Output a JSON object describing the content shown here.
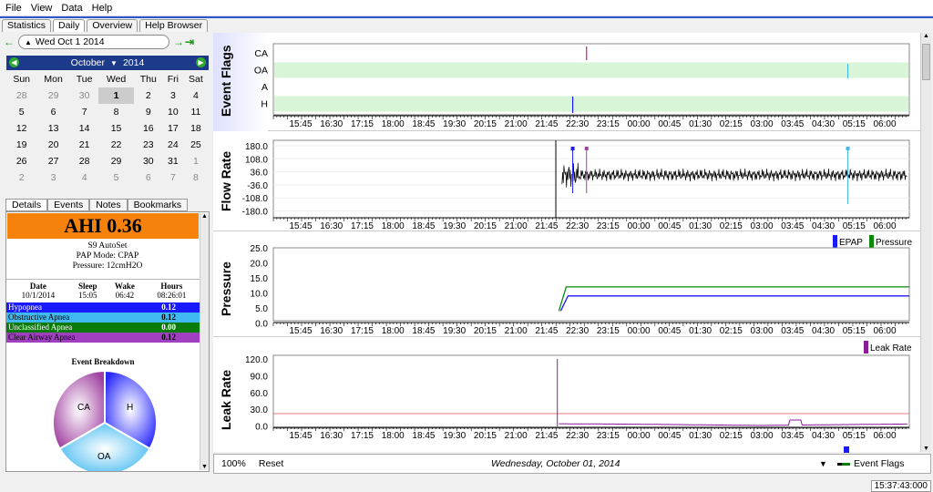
{
  "menu": [
    "File",
    "View",
    "Data",
    "Help"
  ],
  "tabs": [
    "Statistics",
    "Daily",
    "Overview",
    "Help Browser"
  ],
  "date_nav": {
    "date": "Wed Oct 1 2014"
  },
  "calendar": {
    "month": "October",
    "year": "2014",
    "weekdays": [
      "Sun",
      "Mon",
      "Tue",
      "Wed",
      "Thu",
      "Fri",
      "Sat"
    ],
    "weeks": [
      [
        "28",
        "29",
        "30",
        "1",
        "2",
        "3",
        "4"
      ],
      [
        "5",
        "6",
        "7",
        "8",
        "9",
        "10",
        "11"
      ],
      [
        "12",
        "13",
        "14",
        "15",
        "16",
        "17",
        "18"
      ],
      [
        "19",
        "20",
        "21",
        "22",
        "23",
        "24",
        "25"
      ],
      [
        "26",
        "27",
        "28",
        "29",
        "30",
        "31",
        "1"
      ],
      [
        "2",
        "3",
        "4",
        "5",
        "6",
        "7",
        "8"
      ]
    ]
  },
  "detail_tabs": [
    "Details",
    "Events",
    "Notes",
    "Bookmarks"
  ],
  "details": {
    "ahi": "AHI 0.36",
    "machine": "S9 AutoSet",
    "pap_mode": "PAP Mode: CPAP",
    "pressure": "Pressure: 12cmH2O",
    "headers": [
      "Date",
      "Sleep",
      "Wake",
      "Hours"
    ],
    "row": [
      "10/1/2014",
      "15:05",
      "06:42",
      "08:26:01"
    ],
    "events": [
      {
        "name": "Hypopnea",
        "value": "0.12",
        "color": "#1a1aff",
        "text": "#fff"
      },
      {
        "name": "Obstructive Apnea",
        "value": "0.12",
        "color": "#40b8f0",
        "text": "#000"
      },
      {
        "name": "Unclassified Apnea",
        "value": "0.00",
        "color": "#0a7a0a",
        "text": "#fff"
      },
      {
        "name": "Clear Airway Apnea",
        "value": "0.12",
        "color": "#a040c0",
        "text": "#000"
      }
    ],
    "breakdown_title": "Event Breakdown",
    "pie_labels": [
      "CA",
      "H",
      "OA"
    ]
  },
  "graphs": {
    "time_ticks": [
      "15:45",
      "16:30",
      "17:15",
      "18:00",
      "18:45",
      "19:30",
      "20:15",
      "21:00",
      "21:45",
      "22:30",
      "23:15",
      "00:00",
      "00:45",
      "01:30",
      "02:15",
      "03:00",
      "03:45",
      "04:30",
      "05:15",
      "06:00"
    ],
    "event_flags": {
      "title": "Event Flags",
      "rows": [
        "CA",
        "OA",
        "A",
        "H"
      ]
    },
    "flow_rate": {
      "title": "Flow Rate",
      "yticks": [
        "180.0",
        "108.0",
        "36.0",
        "-36.0",
        "-108.0",
        "-180.0"
      ]
    },
    "pressure": {
      "title": "Pressure",
      "yticks": [
        "25.0",
        "20.0",
        "15.0",
        "10.0",
        "5.0",
        "0.0"
      ],
      "legend": [
        "EPAP",
        "Pressure"
      ]
    },
    "leak_rate": {
      "title": "Leak Rate",
      "yticks": [
        "120.0",
        "90.0",
        "60.0",
        "30.0",
        "0.0"
      ],
      "legend": [
        "Leak Rate"
      ]
    }
  },
  "bottombar": {
    "zoom": "100%",
    "reset": "Reset",
    "date": "Wednesday, October 01, 2014",
    "selector": "Event Flags"
  },
  "clock": "15:37:43:000"
}
